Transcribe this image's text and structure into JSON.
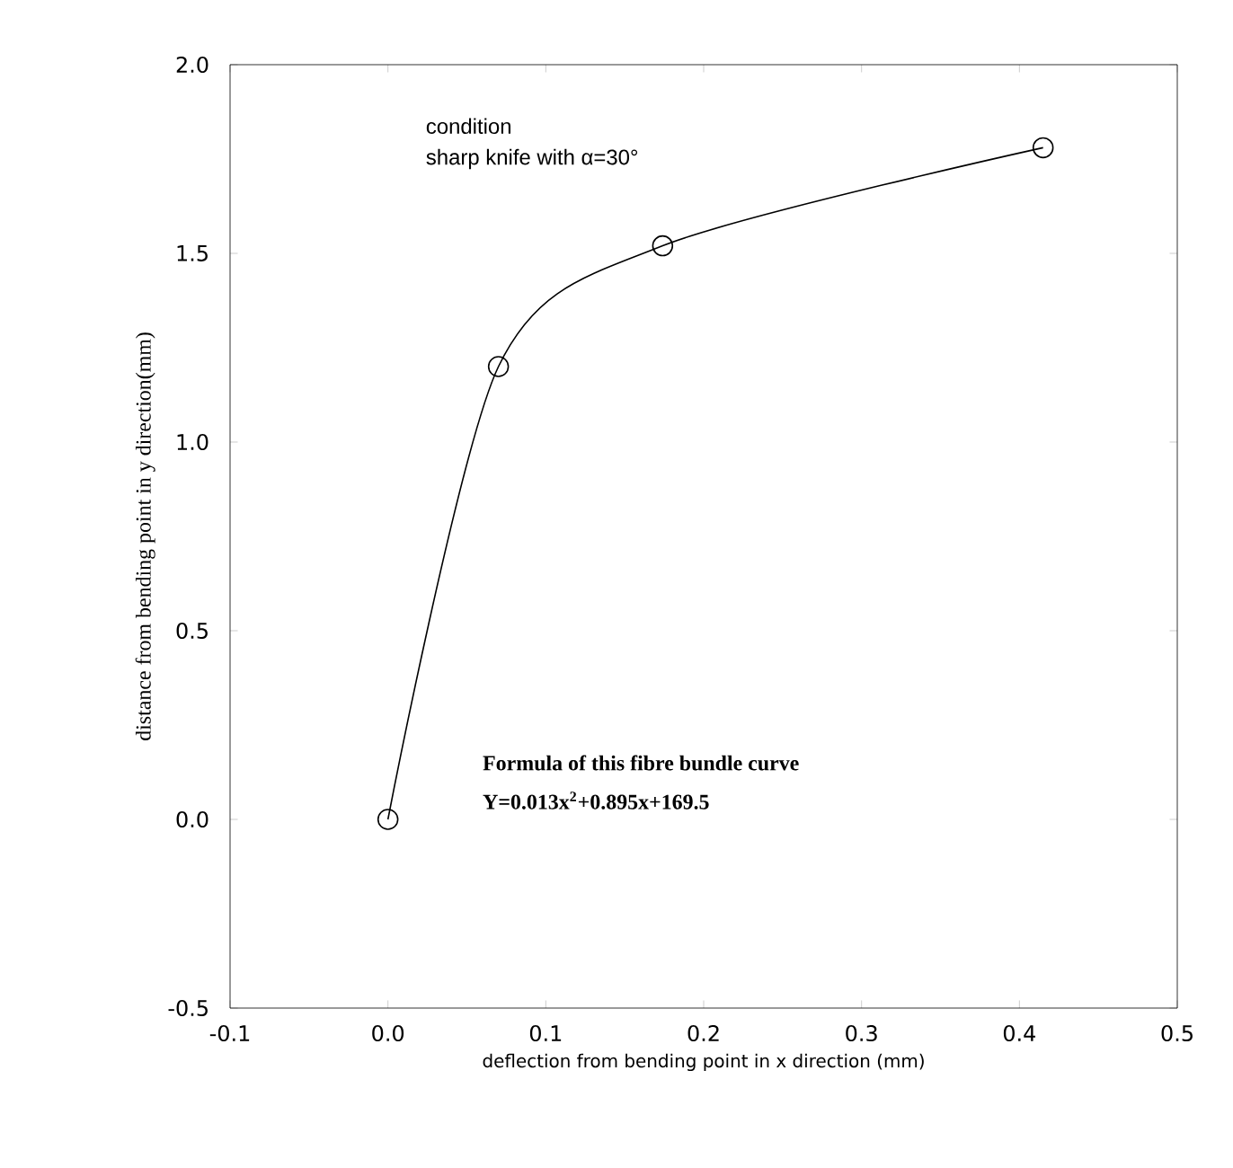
{
  "chart_data": {
    "type": "line",
    "xlabel": "deflection from bending point in x direction (mm)",
    "ylabel": "distance from bending point in y direction(mm)",
    "x": [
      0.0,
      0.07,
      0.174,
      0.415
    ],
    "series": [
      {
        "color": "#000000",
        "values": [
          0.0,
          1.2,
          1.52,
          1.78
        ]
      }
    ],
    "marker": "circle",
    "line_style": "solid",
    "xlim": [
      -0.1,
      0.5
    ],
    "ylim": [
      -0.5,
      2.0
    ],
    "xticks": [
      -0.1,
      {
        "value": 0.0,
        "label": "0.0"
      },
      0.1,
      0.2,
      0.3,
      0.4,
      0.5
    ],
    "yticks": [
      -0.5,
      {
        "value": 0.0,
        "label": "0.0"
      },
      0.5,
      {
        "value": 1.0,
        "label": "1.0"
      },
      1.5,
      {
        "value": 2.0,
        "label": "2.0"
      }
    ],
    "annotations": [
      "condition",
      "sharp knife with α=30°",
      "Formula of this fibre bundle curve",
      "Y=0.013x$^{2}$+0.895x+169.5"
    ]
  }
}
